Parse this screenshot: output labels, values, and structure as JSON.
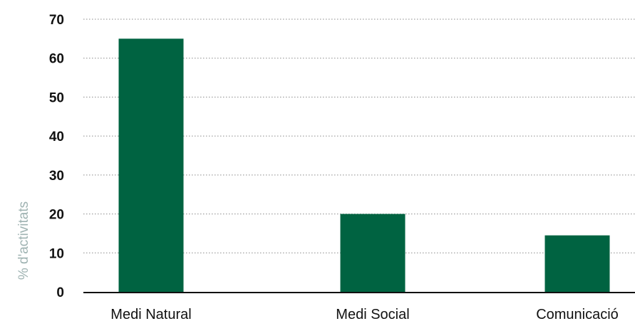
{
  "chart_data": {
    "type": "bar",
    "categories": [
      "Medi Natural",
      "Medi Social",
      "Comunicació"
    ],
    "values": [
      65,
      20,
      14.5
    ],
    "title": "",
    "xlabel": "",
    "ylabel": "% d'activitats",
    "ylim": [
      0,
      70
    ],
    "yticks": [
      0,
      10,
      20,
      30,
      40,
      50,
      60,
      70
    ],
    "grid": true,
    "colors": {
      "bar": "#006341",
      "ylabel": "#9fb3b2"
    }
  }
}
